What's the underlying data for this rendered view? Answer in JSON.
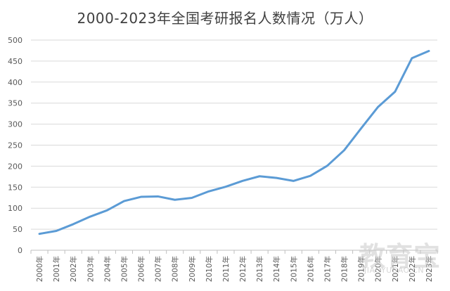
{
  "chart_data": {
    "type": "line",
    "title": "2000-2023年全国考研报名人数情况（万人）",
    "xlabel": "",
    "ylabel": "",
    "ylim": [
      0,
      500
    ],
    "y_ticks": [
      0,
      50,
      100,
      150,
      200,
      250,
      300,
      350,
      400,
      450,
      500
    ],
    "grid": true,
    "legend": "none",
    "categories": [
      "2000年",
      "2001年",
      "2002年",
      "2003年",
      "2004年",
      "2005年",
      "2006年",
      "2007年",
      "2008年",
      "2009年",
      "2010年",
      "2011年",
      "2012年",
      "2013年",
      "2014年",
      "2015年",
      "2016年",
      "2017年",
      "2018年",
      "2019年",
      "2020年",
      "2021年",
      "2022年",
      "2023年"
    ],
    "series": [
      {
        "values": [
          39,
          46,
          62,
          80,
          95,
          117,
          127,
          128,
          120,
          124.6,
          140,
          151,
          165,
          176,
          172,
          164.9,
          177,
          201,
          238,
          290,
          341,
          377,
          457,
          474
        ]
      }
    ],
    "colors": {
      "line": "#5B9BD5",
      "grid": "#D9D9D9",
      "axis": "#BFBFBF",
      "tick_text": "#595959"
    }
  },
  "watermark": {
    "main": "教育宝",
    "sub": "JIAOYUBAO.CN"
  }
}
